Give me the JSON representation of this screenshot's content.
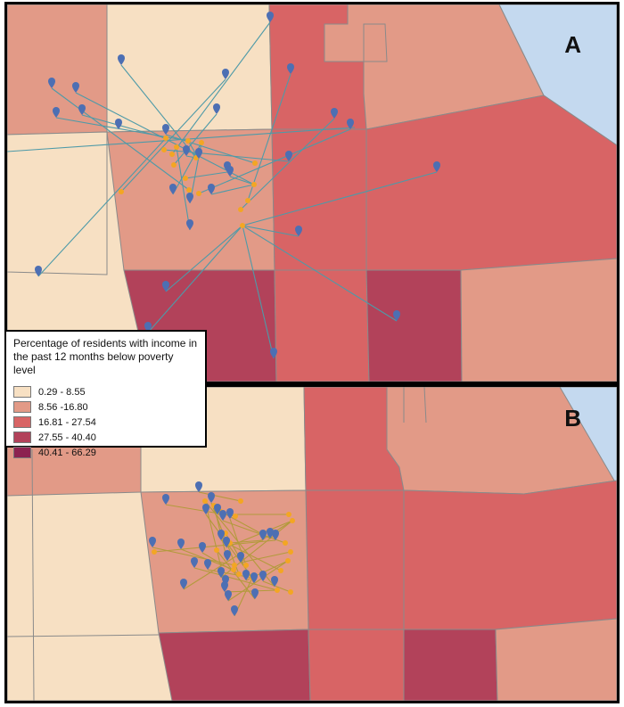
{
  "panels": [
    {
      "id": "A",
      "label": "A",
      "line_color": "#4e9aa8"
    },
    {
      "id": "B",
      "label": "B",
      "line_color": "#b39a3c"
    }
  ],
  "legend": {
    "title": "Percentage of residents with income in the past 12 months below poverty level",
    "classes": [
      {
        "label": "0.29 - 8.55",
        "color": "#f7e0c3"
      },
      {
        "label": "8.56 -16.80",
        "color": "#e29a87"
      },
      {
        "label": "16.81 - 27.54",
        "color": "#d86465"
      },
      {
        "label": "27.55 - 40.40",
        "color": "#b2425a"
      },
      {
        "label": "40.41 - 66.29",
        "color": "#8c2250"
      }
    ]
  },
  "colors": {
    "water": "#c4d9ef",
    "origin_marker": "#4d6fb3",
    "destination_marker": "#f3a623",
    "boundary": "#8a8a8a"
  },
  "icons": {
    "origin": "map-pin-icon",
    "destination": "dot-icon"
  }
}
